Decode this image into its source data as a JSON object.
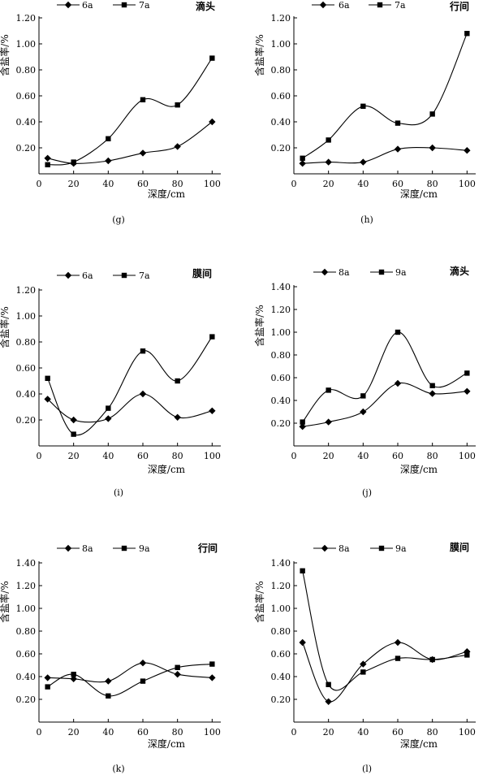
{
  "chart_data": [
    {
      "type": "line",
      "panel_label": "(g)",
      "corner_label": "滴头",
      "xlabel": "深度/cm",
      "ylabel": "含盐率/%",
      "x": [
        5,
        20,
        40,
        60,
        80,
        100
      ],
      "x_ticks": [
        "0",
        "20",
        "40",
        "60",
        "80",
        "100"
      ],
      "xlim": [
        0,
        105
      ],
      "y_ticks": [
        "0.20",
        "0.40",
        "0.60",
        "0.80",
        "1.00",
        "1.20"
      ],
      "ylim": [
        0,
        1.2
      ],
      "legend_position": "top",
      "series": [
        {
          "name": "6a",
          "marker": "diamond",
          "values": [
            0.12,
            0.08,
            0.1,
            0.16,
            0.21,
            0.4
          ]
        },
        {
          "name": "7a",
          "marker": "square",
          "values": [
            0.07,
            0.09,
            0.27,
            0.57,
            0.53,
            0.89
          ]
        }
      ]
    },
    {
      "type": "line",
      "panel_label": "(h)",
      "corner_label": "行间",
      "xlabel": "深度/cm",
      "ylabel": "含盐率/%",
      "x": [
        5,
        20,
        40,
        60,
        80,
        100
      ],
      "x_ticks": [
        "0",
        "20",
        "40",
        "60",
        "80",
        "100"
      ],
      "xlim": [
        0,
        105
      ],
      "y_ticks": [
        "0.20",
        "0.40",
        "0.60",
        "0.80",
        "1.00",
        "1.20"
      ],
      "ylim": [
        0,
        1.2
      ],
      "legend_position": "top",
      "series": [
        {
          "name": "6a",
          "marker": "diamond",
          "values": [
            0.08,
            0.09,
            0.09,
            0.19,
            0.2,
            0.18
          ]
        },
        {
          "name": "7a",
          "marker": "square",
          "values": [
            0.12,
            0.26,
            0.52,
            0.39,
            0.46,
            1.08
          ]
        }
      ]
    },
    {
      "type": "line",
      "panel_label": "(i)",
      "corner_label": "膜间",
      "xlabel": "深度/cm",
      "ylabel": "含盐率/%",
      "x": [
        5,
        20,
        40,
        60,
        80,
        100
      ],
      "x_ticks": [
        "0",
        "20",
        "40",
        "60",
        "80",
        "100"
      ],
      "xlim": [
        0,
        105
      ],
      "y_ticks": [
        "0.20",
        "0.40",
        "0.60",
        "0.80",
        "1.00",
        "1.20"
      ],
      "ylim": [
        0,
        1.2
      ],
      "legend_position": "top",
      "series": [
        {
          "name": "6a",
          "marker": "diamond",
          "values": [
            0.36,
            0.2,
            0.21,
            0.4,
            0.22,
            0.27
          ]
        },
        {
          "name": "7a",
          "marker": "square",
          "values": [
            0.52,
            0.09,
            0.29,
            0.73,
            0.5,
            0.84
          ]
        }
      ]
    },
    {
      "type": "line",
      "panel_label": "(j)",
      "corner_label": "滴头",
      "xlabel": "深度/cm",
      "ylabel": "含盐率/%",
      "x": [
        5,
        20,
        40,
        60,
        80,
        100
      ],
      "x_ticks": [
        "0",
        "20",
        "40",
        "60",
        "80",
        "100"
      ],
      "xlim": [
        0,
        105
      ],
      "y_ticks": [
        "0.20",
        "0.40",
        "0.60",
        "0.80",
        "1.00",
        "1.20",
        "1.40"
      ],
      "ylim": [
        0,
        1.4
      ],
      "legend_position": "top",
      "series": [
        {
          "name": "8a",
          "marker": "diamond",
          "values": [
            0.17,
            0.21,
            0.3,
            0.55,
            0.46,
            0.48
          ]
        },
        {
          "name": "9a",
          "marker": "square",
          "values": [
            0.21,
            0.49,
            0.44,
            1.0,
            0.53,
            0.64
          ]
        }
      ]
    },
    {
      "type": "line",
      "panel_label": "(k)",
      "corner_label": "行间",
      "xlabel": "深度/cm",
      "ylabel": "含盐率/%",
      "x": [
        5,
        20,
        40,
        60,
        80,
        100
      ],
      "x_ticks": [
        "0",
        "20",
        "40",
        "60",
        "80",
        "100"
      ],
      "xlim": [
        0,
        105
      ],
      "y_ticks": [
        "0.20",
        "0.40",
        "0.60",
        "0.80",
        "1.00",
        "1.20",
        "1.40"
      ],
      "ylim": [
        0,
        1.4
      ],
      "legend_position": "top",
      "series": [
        {
          "name": "8a",
          "marker": "diamond",
          "values": [
            0.39,
            0.38,
            0.36,
            0.52,
            0.42,
            0.39
          ]
        },
        {
          "name": "9a",
          "marker": "square",
          "values": [
            0.31,
            0.42,
            0.23,
            0.36,
            0.48,
            0.51
          ]
        }
      ]
    },
    {
      "type": "line",
      "panel_label": "(l)",
      "corner_label": "膜间",
      "xlabel": "深度/cm",
      "ylabel": "含盐率/%",
      "x": [
        5,
        20,
        40,
        60,
        80,
        100
      ],
      "x_ticks": [
        "0",
        "20",
        "40",
        "60",
        "80",
        "100"
      ],
      "xlim": [
        0,
        105
      ],
      "y_ticks": [
        "0.20",
        "0.40",
        "0.60",
        "0.80",
        "1.00",
        "1.20",
        "1.40"
      ],
      "ylim": [
        0,
        1.4
      ],
      "legend_position": "top",
      "series": [
        {
          "name": "8a",
          "marker": "diamond",
          "values": [
            0.7,
            0.18,
            0.51,
            0.7,
            0.55,
            0.62
          ]
        },
        {
          "name": "9a",
          "marker": "square",
          "values": [
            1.33,
            0.33,
            0.44,
            0.56,
            0.55,
            0.59
          ]
        }
      ]
    }
  ]
}
